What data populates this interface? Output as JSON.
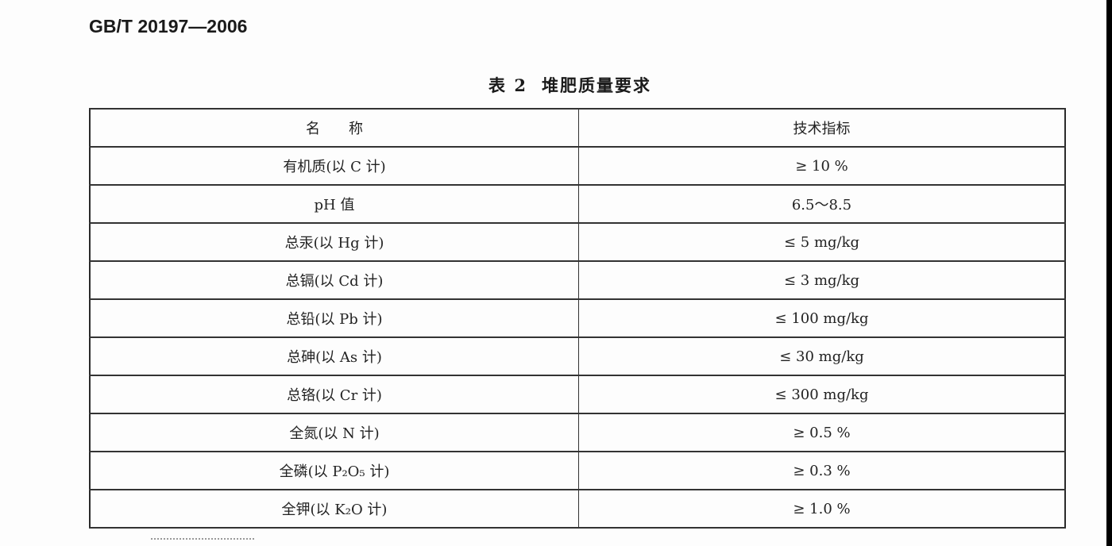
{
  "document": {
    "standard_code": "GB/T 20197—2006",
    "table_caption_number": "表 2",
    "table_caption_title": "堆肥质量要求"
  },
  "table": {
    "headers": [
      "名　　称",
      "技术指标"
    ],
    "rows": [
      {
        "name": "有机质(以 C 计)",
        "value": "≥ 10 %"
      },
      {
        "name": "pH 值",
        "value": "6.5～8.5"
      },
      {
        "name": "总汞(以 Hg 计)",
        "value": "≤ 5 mg/kg"
      },
      {
        "name": "总镉(以 Cd 计)",
        "value": "≤ 3 mg/kg"
      },
      {
        "name": "总铅(以 Pb 计)",
        "value": "≤ 100 mg/kg"
      },
      {
        "name": "总砷(以 As 计)",
        "value": "≤ 30 mg/kg"
      },
      {
        "name": "总铬(以 Cr 计)",
        "value": "≤ 300 mg/kg"
      },
      {
        "name": "全氮(以 N 计)",
        "value": "≥ 0.5 %"
      },
      {
        "name": "全磷(以 P₂O₅ 计)",
        "value": "≥ 0.3 %"
      },
      {
        "name": "全钾(以 K₂O 计)",
        "value": "≥ 1.0 %"
      }
    ]
  }
}
